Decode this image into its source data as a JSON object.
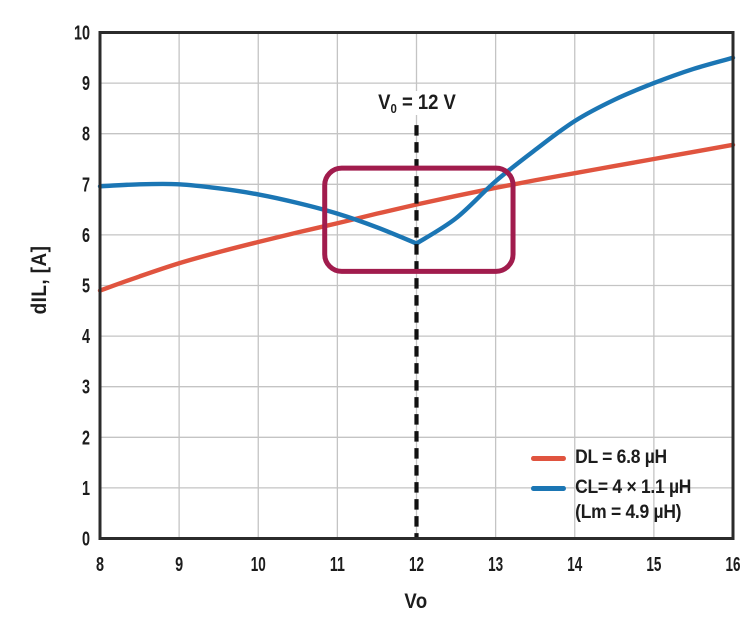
{
  "chart_data": {
    "type": "line",
    "title": "",
    "xlabel": "Vo",
    "ylabel": "dIL, [A]",
    "x_range": [
      8,
      16
    ],
    "y_range": [
      0,
      10
    ],
    "x_ticks": [
      8,
      9,
      10,
      11,
      12,
      13,
      14,
      15,
      16
    ],
    "y_ticks": [
      0,
      1,
      2,
      3,
      4,
      5,
      6,
      7,
      8,
      9,
      10
    ],
    "grid": true,
    "colors": {
      "grid": "#c4c4c4",
      "frame": "#2b2b2b",
      "text": "#1c1c1c",
      "orange": "#e0543f",
      "blue": "#1b76b4",
      "maroon": "#a11c4d",
      "dashed_line": "#111111"
    },
    "series": [
      {
        "id": "dl",
        "name": "DL = 6.8 µH",
        "color": "#e0543f",
        "segments": [
          [
            [
              8,
              4.9
            ],
            [
              8.5,
              5.18
            ],
            [
              9,
              5.44
            ],
            [
              9.5,
              5.66
            ],
            [
              10,
              5.86
            ],
            [
              10.5,
              6.05
            ],
            [
              11,
              6.23
            ],
            [
              11.5,
              6.42
            ],
            [
              12,
              6.6
            ],
            [
              12.5,
              6.77
            ],
            [
              13,
              6.93
            ],
            [
              13.5,
              7.08
            ],
            [
              14,
              7.22
            ],
            [
              14.5,
              7.36
            ],
            [
              15,
              7.5
            ],
            [
              15.5,
              7.64
            ],
            [
              16,
              7.78
            ]
          ]
        ]
      },
      {
        "id": "cl",
        "name": "CL= 4 × 1.1 µH (Lm = 4.9 µH)",
        "color": "#1b76b4",
        "segments": [
          [
            [
              8,
              6.96
            ],
            [
              8.5,
              7.0
            ],
            [
              9,
              7.0
            ],
            [
              9.5,
              6.92
            ],
            [
              10,
              6.8
            ],
            [
              10.5,
              6.63
            ],
            [
              11,
              6.42
            ],
            [
              11.5,
              6.15
            ],
            [
              12,
              5.83
            ]
          ],
          [
            [
              12,
              5.83
            ],
            [
              12.5,
              6.33
            ],
            [
              13,
              7.06
            ],
            [
              13.5,
              7.68
            ],
            [
              14,
              8.25
            ],
            [
              14.5,
              8.67
            ],
            [
              15,
              9.0
            ],
            [
              15.5,
              9.28
            ],
            [
              16,
              9.5
            ]
          ]
        ]
      }
    ],
    "annotations": {
      "vline": {
        "x": 12,
        "y_top": 8.17,
        "style": "dashed",
        "color": "#111111",
        "label": {
          "main": "V",
          "sub": "0",
          "rest": " = 12 V"
        }
      },
      "highlight_box": {
        "x0": 10.84,
        "x1": 13.22,
        "y0": 5.28,
        "y1": 7.32,
        "color": "#a11c4d",
        "corner_radius": 17
      }
    },
    "legend": {
      "position": "bottom-right",
      "items": [
        {
          "color": "#e0543f",
          "lines": [
            "DL = 6.8 µH"
          ]
        },
        {
          "color": "#1b76b4",
          "lines": [
            "CL= 4 × 1.1 µH",
            "(Lm = 4.9 µH)"
          ]
        }
      ]
    }
  }
}
